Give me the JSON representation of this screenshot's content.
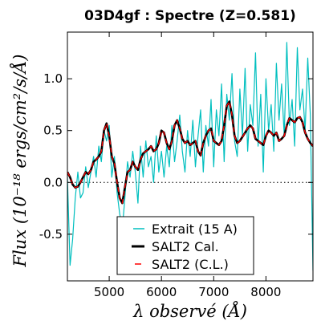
{
  "chart_data": {
    "type": "line",
    "title": "03D4gf : Spectre (Z=0.581)",
    "xlabel": "λ observé (Å)",
    "ylabel": "Flux (10⁻¹⁸ ergs/cm²/s/Å)",
    "xlim": [
      4200,
      8900
    ],
    "ylim": [
      -0.95,
      1.45
    ],
    "xticks": [
      5000,
      6000,
      7000,
      8000
    ],
    "yticks": [
      -0.5,
      0.0,
      0.5,
      1.0
    ],
    "xtick_labels": [
      "5000",
      "6000",
      "7000",
      "8000"
    ],
    "ytick_labels": [
      "-0.5",
      "0.0",
      "0.5",
      "1.0"
    ],
    "zero_line": 0.0,
    "legend_position": "lower-center",
    "series": [
      {
        "name": "Extrait (15 A)",
        "color": "#00bfbf",
        "style": "thin-solid",
        "x": [
          4200,
          4250,
          4300,
          4350,
          4400,
          4450,
          4500,
          4550,
          4600,
          4650,
          4700,
          4750,
          4800,
          4850,
          4900,
          4950,
          5000,
          5050,
          5100,
          5150,
          5200,
          5250,
          5300,
          5350,
          5400,
          5450,
          5500,
          5550,
          5600,
          5650,
          5700,
          5750,
          5800,
          5850,
          5900,
          5950,
          6000,
          6050,
          6100,
          6150,
          6200,
          6250,
          6300,
          6350,
          6400,
          6450,
          6500,
          6550,
          6600,
          6650,
          6700,
          6750,
          6800,
          6850,
          6900,
          6950,
          7000,
          7050,
          7100,
          7150,
          7200,
          7250,
          7300,
          7350,
          7400,
          7450,
          7500,
          7550,
          7600,
          7650,
          7700,
          7750,
          7800,
          7850,
          7900,
          7950,
          8000,
          8050,
          8100,
          8150,
          8200,
          8250,
          8300,
          8350,
          8400,
          8450,
          8500,
          8550,
          8600,
          8650,
          8700,
          8750,
          8800,
          8850,
          8900
        ],
        "values": [
          0.05,
          -0.8,
          -0.55,
          -0.15,
          0.1,
          -0.15,
          -0.1,
          0.15,
          -0.05,
          0.1,
          0.25,
          0.05,
          0.35,
          0.2,
          0.5,
          0.4,
          0.55,
          0.05,
          0.25,
          -0.1,
          -0.3,
          -0.45,
          -0.15,
          0.2,
          0.05,
          0.3,
          0.1,
          -0.2,
          0.35,
          0.05,
          0.4,
          0.15,
          0.25,
          0.0,
          0.45,
          0.1,
          0.3,
          0.05,
          0.35,
          0.15,
          0.55,
          0.2,
          0.4,
          0.65,
          0.3,
          0.1,
          0.5,
          0.25,
          0.6,
          0.15,
          0.45,
          0.7,
          0.1,
          0.55,
          0.35,
          0.8,
          0.15,
          0.7,
          0.45,
          0.95,
          0.2,
          0.85,
          0.6,
          1.05,
          0.4,
          0.25,
          0.9,
          0.45,
          1.1,
          0.3,
          0.75,
          0.55,
          1.25,
          0.35,
          0.85,
          0.1,
          1.0,
          0.5,
          0.75,
          0.3,
          1.15,
          0.6,
          0.95,
          0.45,
          1.35,
          0.55,
          0.8,
          0.35,
          1.3,
          0.7,
          0.9,
          0.5,
          1.2,
          0.65,
          -0.85
        ]
      },
      {
        "name": "SALT2 Cal.",
        "color": "#000000",
        "style": "thick-solid",
        "x": [
          4200,
          4250,
          4300,
          4350,
          4400,
          4450,
          4500,
          4550,
          4600,
          4650,
          4700,
          4750,
          4800,
          4850,
          4900,
          4950,
          5000,
          5050,
          5100,
          5150,
          5200,
          5250,
          5300,
          5350,
          5400,
          5450,
          5500,
          5550,
          5600,
          5650,
          5700,
          5750,
          5800,
          5850,
          5900,
          5950,
          6000,
          6050,
          6100,
          6150,
          6200,
          6250,
          6300,
          6350,
          6400,
          6450,
          6500,
          6550,
          6600,
          6650,
          6700,
          6750,
          6800,
          6850,
          6900,
          6950,
          7000,
          7050,
          7100,
          7150,
          7200,
          7250,
          7300,
          7350,
          7400,
          7450,
          7500,
          7550,
          7600,
          7650,
          7700,
          7750,
          7800,
          7850,
          7900,
          7950,
          8000,
          8050,
          8100,
          8150,
          8200,
          8250,
          8300,
          8350,
          8400,
          8450,
          8500,
          8550,
          8600,
          8650,
          8700,
          8750,
          8800,
          8850,
          8900
        ],
        "values": [
          0.1,
          0.05,
          -0.02,
          -0.05,
          -0.04,
          0.0,
          0.05,
          0.1,
          0.08,
          0.12,
          0.2,
          0.22,
          0.25,
          0.3,
          0.5,
          0.57,
          0.45,
          0.25,
          0.18,
          0.0,
          -0.15,
          -0.2,
          -0.05,
          0.1,
          0.12,
          0.2,
          0.15,
          0.12,
          0.22,
          0.28,
          0.3,
          0.32,
          0.35,
          0.3,
          0.32,
          0.38,
          0.5,
          0.48,
          0.38,
          0.32,
          0.4,
          0.55,
          0.6,
          0.52,
          0.42,
          0.38,
          0.4,
          0.36,
          0.38,
          0.4,
          0.3,
          0.26,
          0.38,
          0.45,
          0.5,
          0.52,
          0.4,
          0.38,
          0.36,
          0.4,
          0.55,
          0.74,
          0.78,
          0.65,
          0.45,
          0.38,
          0.4,
          0.44,
          0.48,
          0.52,
          0.55,
          0.52,
          0.42,
          0.4,
          0.38,
          0.36,
          0.45,
          0.5,
          0.48,
          0.45,
          0.48,
          0.4,
          0.42,
          0.45,
          0.55,
          0.62,
          0.6,
          0.58,
          0.62,
          0.63,
          0.58,
          0.48,
          0.42,
          0.38,
          0.35
        ]
      },
      {
        "name": "SALT2 (C.L.)",
        "color": "#ff0000",
        "style": "dashed",
        "x": [
          4200,
          4250,
          4300,
          4350,
          4400,
          4450,
          4500,
          4550,
          4600,
          4650,
          4700,
          4750,
          4800,
          4850,
          4900,
          4950,
          5000,
          5050,
          5100,
          5150,
          5200,
          5250,
          5300,
          5350,
          5400,
          5450,
          5500,
          5550,
          5600,
          5650,
          5700,
          5750,
          5800,
          5850,
          5900,
          5950,
          6000,
          6050,
          6100,
          6150,
          6200,
          6250,
          6300,
          6350,
          6400,
          6450,
          6500,
          6550,
          6600,
          6650,
          6700,
          6750,
          6800,
          6850,
          6900,
          6950,
          7000,
          7050,
          7100,
          7150,
          7200,
          7250,
          7300,
          7350,
          7400,
          7450,
          7500,
          7550,
          7600,
          7650,
          7700,
          7750,
          7800,
          7850,
          7900,
          7950,
          8000,
          8050,
          8100,
          8150,
          8200,
          8250,
          8300,
          8350,
          8400,
          8450,
          8500,
          8550,
          8600,
          8650,
          8700,
          8750,
          8800,
          8850,
          8900
        ],
        "values": [
          0.1,
          0.05,
          -0.02,
          -0.05,
          -0.04,
          0.0,
          0.05,
          0.1,
          0.08,
          0.12,
          0.2,
          0.22,
          0.25,
          0.3,
          0.5,
          0.57,
          0.45,
          0.25,
          0.18,
          0.0,
          -0.15,
          -0.2,
          -0.05,
          0.1,
          0.12,
          0.2,
          0.15,
          0.12,
          0.22,
          0.28,
          0.3,
          0.32,
          0.35,
          0.3,
          0.32,
          0.38,
          0.5,
          0.48,
          0.38,
          0.32,
          0.4,
          0.55,
          0.6,
          0.52,
          0.42,
          0.38,
          0.4,
          0.36,
          0.38,
          0.4,
          0.3,
          0.26,
          0.38,
          0.45,
          0.5,
          0.52,
          0.4,
          0.38,
          0.36,
          0.4,
          0.55,
          0.74,
          0.78,
          0.65,
          0.45,
          0.38,
          0.4,
          0.44,
          0.48,
          0.52,
          0.55,
          0.52,
          0.42,
          0.4,
          0.38,
          0.36,
          0.45,
          0.5,
          0.48,
          0.45,
          0.48,
          0.4,
          0.42,
          0.45,
          0.55,
          0.62,
          0.6,
          0.58,
          0.62,
          0.63,
          0.58,
          0.48,
          0.42,
          0.38,
          0.35
        ]
      }
    ]
  }
}
